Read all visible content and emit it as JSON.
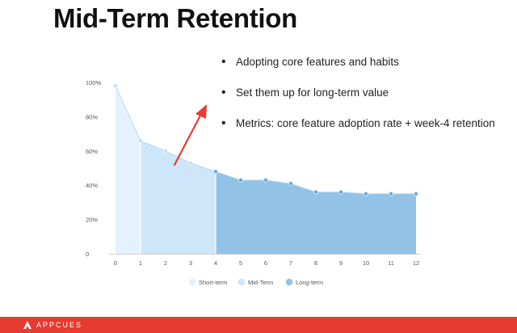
{
  "slide": {
    "title": "Mid-Term Retention",
    "bullets": [
      "Adopting core features and habits",
      "Set them up for long-term value",
      "Metrics: core feature adoption rate + week-4 retention"
    ],
    "brand": "APPCUES"
  },
  "colors": {
    "short_term": "#e3f2fd",
    "mid_term": "#cde6f9",
    "long_term": "#92c2e6",
    "arrow": "#e53b30",
    "footer": "#e53b30"
  },
  "chart_data": {
    "type": "area",
    "title": "",
    "xlabel": "",
    "ylabel": "",
    "x": [
      0,
      1,
      2,
      3,
      4,
      5,
      6,
      7,
      8,
      9,
      10,
      11,
      12
    ],
    "y": [
      98,
      66,
      60,
      53,
      48,
      43,
      43,
      41,
      36,
      36,
      35,
      35,
      35
    ],
    "y_ticks": [
      "0",
      "20%",
      "40%",
      "60%",
      "80%",
      "100%"
    ],
    "y_tick_values": [
      0,
      20,
      40,
      60,
      80,
      100
    ],
    "ylim": [
      0,
      100
    ],
    "xlim": [
      0,
      12
    ],
    "segments": [
      {
        "name": "Short-term",
        "from": 0,
        "to": 1,
        "color_key": "short_term"
      },
      {
        "name": "Mid-Term",
        "from": 1,
        "to": 4,
        "color_key": "mid_term"
      },
      {
        "name": "Long-term",
        "from": 4,
        "to": 12,
        "color_key": "long_term"
      }
    ],
    "legend_position": "bottom",
    "grid": false,
    "annotation": "upward red arrow over the mid-term segment"
  }
}
